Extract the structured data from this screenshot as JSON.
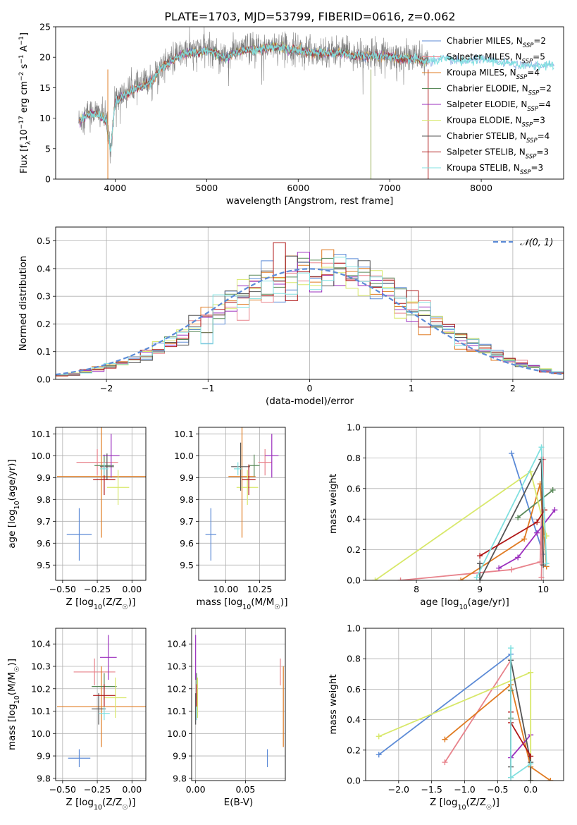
{
  "figure": {
    "title": "PLATE=1703, MJD=53799, FIBERID=0616, z=0.062"
  },
  "series_styles": [
    {
      "name": "Chabrier MILES",
      "label_main": "Chabrier MILES, N",
      "label_sub": "SSP",
      "label_tail": "=2",
      "color": "#5b8ad6"
    },
    {
      "name": "Salpeter MILES",
      "label_main": "Salpeter MILES, N",
      "label_sub": "SSP",
      "label_tail": "=5",
      "color": "#e8838c"
    },
    {
      "name": "Kroupa MILES",
      "label_main": "Kroupa MILES, N",
      "label_sub": "SSP",
      "label_tail": "=4",
      "color": "#e07b22"
    },
    {
      "name": "Chabrier ELODIE",
      "label_main": "Chabrier ELODIE, N",
      "label_sub": "SSP",
      "label_tail": "=2",
      "color": "#5a8a5a"
    },
    {
      "name": "Salpeter ELODIE",
      "label_main": "Salpeter ELODIE, N",
      "label_sub": "SSP",
      "label_tail": "=4",
      "color": "#9b2fbe"
    },
    {
      "name": "Kroupa ELODIE",
      "label_main": "Kroupa ELODIE, N",
      "label_sub": "SSP",
      "label_tail": "=3",
      "color": "#d8e86a"
    },
    {
      "name": "Chabrier STELIB",
      "label_main": "Chabrier STELIB, N",
      "label_sub": "SSP",
      "label_tail": "=4",
      "color": "#555555"
    },
    {
      "name": "Salpeter STELIB",
      "label_main": "Salpeter STELIB, N",
      "label_sub": "SSP",
      "label_tail": "=3",
      "color": "#b01818"
    },
    {
      "name": "Kroupa STELIB",
      "label_main": "Kroupa STELIB, N",
      "label_sub": "SSP",
      "label_tail": "=3",
      "color": "#80e0e0"
    }
  ],
  "chart_data": [
    {
      "id": "spectrum",
      "type": "line",
      "xlabel": "wavelength [Angstrom, rest frame]",
      "ylabel": "Flux [f_λ10^-17 erg cm^-2 s^-1 A^-1]",
      "xlim": [
        3350,
        8900
      ],
      "ylim": [
        0,
        25
      ],
      "xticks": [
        4000,
        5000,
        6000,
        7000,
        8000
      ],
      "yticks": [
        0,
        5,
        10,
        15,
        20,
        25
      ],
      "legend": "right",
      "envelope": [
        [
          3600,
          9.5
        ],
        [
          3700,
          11
        ],
        [
          3800,
          11
        ],
        [
          3900,
          10
        ],
        [
          3950,
          5
        ],
        [
          4000,
          13
        ],
        [
          4100,
          14
        ],
        [
          4200,
          15
        ],
        [
          4300,
          15.5
        ],
        [
          4400,
          16.5
        ],
        [
          4500,
          18.5
        ],
        [
          4600,
          19.5
        ],
        [
          4700,
          20.5
        ],
        [
          4800,
          21
        ],
        [
          4900,
          21
        ],
        [
          5000,
          21.5
        ],
        [
          5100,
          21
        ],
        [
          5200,
          20
        ],
        [
          5300,
          21
        ],
        [
          5400,
          21.5
        ],
        [
          5500,
          21.5
        ],
        [
          5600,
          21.5
        ],
        [
          5700,
          22
        ],
        [
          5800,
          22
        ],
        [
          5900,
          21.5
        ],
        [
          6000,
          21.5
        ],
        [
          6100,
          21
        ],
        [
          6200,
          21
        ],
        [
          6300,
          21
        ],
        [
          6400,
          21
        ],
        [
          6500,
          21
        ],
        [
          6600,
          20.5
        ],
        [
          6700,
          20.5
        ],
        [
          6800,
          20.5
        ],
        [
          6900,
          20.5
        ],
        [
          7000,
          20.5
        ],
        [
          7100,
          20
        ],
        [
          7200,
          20
        ],
        [
          7300,
          20
        ],
        [
          7400,
          19.5
        ],
        [
          7600,
          20
        ],
        [
          7800,
          19.5
        ],
        [
          8000,
          20
        ],
        [
          8200,
          19.5
        ],
        [
          8400,
          19
        ],
        [
          8600,
          19
        ],
        [
          8800,
          19
        ]
      ],
      "noise_until": 7420
    },
    {
      "id": "residuals",
      "type": "step",
      "xlabel": "(data-model)/error",
      "ylabel": "Normed distribution",
      "xlim": [
        -2.5,
        2.5
      ],
      "ylim": [
        0,
        0.55
      ],
      "xticks": [
        -2,
        -1,
        0,
        1,
        2
      ],
      "yticks": [
        0.0,
        0.1,
        0.2,
        0.3,
        0.4,
        0.5
      ],
      "bin_edges": [
        -2.5,
        2.5
      ],
      "bins": 42,
      "reference": {
        "label": "𝒩(0, 1)",
        "mean": 0,
        "sigma": 1
      },
      "legend": "top-right"
    },
    {
      "id": "age_vs_Z",
      "type": "scatter",
      "xlabel": "Z [log10(Z/Z☉)]",
      "ylabel": "age [log10(age/yr)]",
      "xlim": [
        -0.55,
        0.1
      ],
      "ylim": [
        9.43,
        10.13
      ],
      "xticks": [
        -0.5,
        -0.25,
        0.0
      ],
      "yticks": [
        9.5,
        9.6,
        9.7,
        9.8,
        9.9,
        10.0,
        10.1
      ],
      "points": [
        {
          "series": "Chabrier MILES",
          "x": -0.38,
          "y": 9.64,
          "xerr": 0.09,
          "yerr": 0.12
        },
        {
          "series": "Salpeter MILES",
          "x": -0.25,
          "y": 9.97,
          "xerr": 0.15,
          "yerr": 0.06
        },
        {
          "series": "Kroupa MILES",
          "x": -0.22,
          "y": 9.905,
          "xerr": 0.32,
          "yerr": 0.28
        },
        {
          "series": "Chabrier ELODIE",
          "x": -0.2,
          "y": 9.955,
          "xerr": 0.07,
          "yerr": 0.05
        },
        {
          "series": "Salpeter ELODIE",
          "x": -0.15,
          "y": 10.0,
          "xerr": 0.06,
          "yerr": 0.1
        },
        {
          "series": "Kroupa ELODIE",
          "x": -0.1,
          "y": 9.855,
          "xerr": 0.08,
          "yerr": 0.08
        },
        {
          "series": "Chabrier STELIB",
          "x": -0.18,
          "y": 9.95,
          "xerr": 0.05,
          "yerr": 0.06
        },
        {
          "series": "Salpeter STELIB",
          "x": -0.2,
          "y": 9.89,
          "xerr": 0.08,
          "yerr": 0.07
        },
        {
          "series": "Kroupa STELIB",
          "x": -0.2,
          "y": 9.94,
          "xerr": 0.03,
          "yerr": 0.03
        }
      ]
    },
    {
      "id": "age_vs_mass",
      "type": "scatter",
      "xlabel": "mass [log10(M/M☉)]",
      "ylabel": "",
      "xlim": [
        9.8,
        10.44
      ],
      "ylim": [
        9.43,
        10.13
      ],
      "xticks": [
        10.0,
        10.25
      ],
      "yticks": [
        9.5,
        9.6,
        9.7,
        9.8,
        9.9,
        10.0,
        10.1
      ],
      "points": [
        {
          "series": "Chabrier MILES",
          "x": 9.89,
          "y": 9.64,
          "xerr": 0.04,
          "yerr": 0.12
        },
        {
          "series": "Salpeter MILES",
          "x": 10.29,
          "y": 9.97,
          "xerr": 0.05,
          "yerr": 0.06
        },
        {
          "series": "Kroupa MILES",
          "x": 10.12,
          "y": 9.905,
          "xerr": 0.1,
          "yerr": 0.28
        },
        {
          "series": "Chabrier ELODIE",
          "x": 10.21,
          "y": 9.955,
          "xerr": 0.04,
          "yerr": 0.05
        },
        {
          "series": "Salpeter ELODIE",
          "x": 10.34,
          "y": 10.0,
          "xerr": 0.05,
          "yerr": 0.1
        },
        {
          "series": "Kroupa ELODIE",
          "x": 10.16,
          "y": 9.855,
          "xerr": 0.08,
          "yerr": 0.08
        },
        {
          "series": "Chabrier STELIB",
          "x": 10.11,
          "y": 9.95,
          "xerr": 0.07,
          "yerr": 0.11
        },
        {
          "series": "Salpeter STELIB",
          "x": 10.17,
          "y": 9.89,
          "xerr": 0.05,
          "yerr": 0.07
        },
        {
          "series": "Kroupa STELIB",
          "x": 10.09,
          "y": 9.94,
          "xerr": 0.03,
          "yerr": 0.03
        }
      ]
    },
    {
      "id": "weight_vs_age",
      "type": "line",
      "xlabel": "age [log10(age/yr)]",
      "ylabel": "mass weight",
      "xlim": [
        7.2,
        10.32
      ],
      "ylim": [
        0,
        1
      ],
      "xticks": [
        8,
        9,
        10
      ],
      "yticks": [
        0.0,
        0.2,
        0.4,
        0.6,
        0.8,
        1.0
      ],
      "series": [
        {
          "name": "Chabrier MILES",
          "x": [
            9.5,
            10.0
          ],
          "y": [
            0.83,
            0.17
          ]
        },
        {
          "name": "Salpeter MILES",
          "x": [
            7.75,
            9.5,
            9.95,
            10.0,
            9.97
          ],
          "y": [
            0.0,
            0.07,
            0.12,
            0.79,
            0.02
          ]
        },
        {
          "name": "Kroupa MILES",
          "x": [
            8.7,
            9.7,
            9.95,
            10.05
          ],
          "y": [
            0.0,
            0.27,
            0.63,
            0.09
          ]
        },
        {
          "name": "Chabrier ELODIE",
          "x": [
            9.6,
            10.15
          ],
          "y": [
            0.41,
            0.59
          ]
        },
        {
          "name": "Salpeter ELODIE",
          "x": [
            9.3,
            9.6,
            9.9,
            10.18
          ],
          "y": [
            0.08,
            0.15,
            0.31,
            0.46
          ]
        },
        {
          "name": "Kroupa ELODIE",
          "x": [
            7.35,
            9.8,
            10.05
          ],
          "y": [
            0.0,
            0.71,
            0.29
          ]
        },
        {
          "name": "Chabrier STELIB",
          "x": [
            9.0,
            9.0,
            9.97,
            10.0
          ],
          "y": [
            0.11,
            0.0,
            0.79,
            0.1
          ]
        },
        {
          "name": "Salpeter STELIB",
          "x": [
            9.0,
            9.9,
            10.02
          ],
          "y": [
            0.16,
            0.38,
            0.46
          ]
        },
        {
          "name": "Kroupa STELIB",
          "x": [
            8.95,
            9.97,
            10.05
          ],
          "y": [
            0.02,
            0.87,
            0.11
          ]
        }
      ]
    },
    {
      "id": "mass_vs_Z",
      "type": "scatter",
      "xlabel": "Z [log10(Z/Z☉)]",
      "ylabel": "mass [log10(M/M☉)]",
      "xlim": [
        -0.55,
        0.1
      ],
      "ylim": [
        9.79,
        10.47
      ],
      "xticks": [
        -0.5,
        -0.25,
        0.0
      ],
      "yticks": [
        9.8,
        9.9,
        10.0,
        10.1,
        10.2,
        10.3,
        10.4
      ],
      "points": [
        {
          "series": "Chabrier MILES",
          "x": -0.38,
          "y": 9.89,
          "xerr": 0.08,
          "yerr": 0.04
        },
        {
          "series": "Salpeter MILES",
          "x": -0.27,
          "y": 10.275,
          "xerr": 0.15,
          "yerr": 0.06
        },
        {
          "series": "Kroupa MILES",
          "x": -0.22,
          "y": 10.12,
          "xerr": 0.32,
          "yerr": 0.18
        },
        {
          "series": "Chabrier ELODIE",
          "x": -0.2,
          "y": 10.21,
          "xerr": 0.09,
          "yerr": 0.06
        },
        {
          "series": "Salpeter ELODIE",
          "x": -0.17,
          "y": 10.34,
          "xerr": 0.06,
          "yerr": 0.1
        },
        {
          "series": "Kroupa ELODIE",
          "x": -0.12,
          "y": 10.16,
          "xerr": 0.08,
          "yerr": 0.09
        },
        {
          "series": "Chabrier STELIB",
          "x": -0.24,
          "y": 10.11,
          "xerr": 0.05,
          "yerr": 0.07
        },
        {
          "series": "Salpeter STELIB",
          "x": -0.2,
          "y": 10.17,
          "xerr": 0.08,
          "yerr": 0.05
        },
        {
          "series": "Kroupa STELIB",
          "x": -0.2,
          "y": 10.09,
          "xerr": 0.04,
          "yerr": 0.03
        }
      ]
    },
    {
      "id": "mass_vs_EBV",
      "type": "scatter",
      "xlabel": "E(B-V)",
      "ylabel": "",
      "xlim": [
        -0.004,
        0.09
      ],
      "ylim": [
        9.79,
        10.47
      ],
      "xticks": [
        0.0,
        0.05
      ],
      "yticks": [
        9.8,
        9.9,
        10.0,
        10.1,
        10.2,
        10.3,
        10.4
      ],
      "points": [
        {
          "series": "Chabrier MILES",
          "x": 0.072,
          "y": 9.89,
          "xerr": 0.0,
          "yerr": 0.04
        },
        {
          "series": "Salpeter MILES",
          "x": 0.085,
          "y": 10.275,
          "xerr": 0.0,
          "yerr": 0.06
        },
        {
          "series": "Kroupa MILES",
          "x": 0.088,
          "y": 10.12,
          "xerr": 0.0,
          "yerr": 0.18
        },
        {
          "series": "Chabrier ELODIE",
          "x": 0.001,
          "y": 10.21,
          "xerr": 0.0,
          "yerr": 0.06
        },
        {
          "series": "Salpeter ELODIE",
          "x": 0.0,
          "y": 10.34,
          "xerr": 0.0,
          "yerr": 0.1
        },
        {
          "series": "Kroupa ELODIE",
          "x": 0.002,
          "y": 10.16,
          "xerr": 0.0,
          "yerr": 0.09
        },
        {
          "series": "Chabrier STELIB",
          "x": 0.0,
          "y": 10.11,
          "xerr": 0.0,
          "yerr": 0.07
        },
        {
          "series": "Salpeter STELIB",
          "x": 0.001,
          "y": 10.17,
          "xerr": 0.0,
          "yerr": 0.05
        },
        {
          "series": "Kroupa STELIB",
          "x": 0.001,
          "y": 10.09,
          "xerr": 0.0,
          "yerr": 0.03
        }
      ]
    },
    {
      "id": "weight_vs_Z",
      "type": "line",
      "xlabel": "Z [log10(Z/Z☉)]",
      "ylabel": "mass weight",
      "xlim": [
        -2.5,
        0.5
      ],
      "ylim": [
        0,
        1
      ],
      "xticks": [
        -2.0,
        -1.5,
        -1.0,
        -0.5,
        0.0
      ],
      "yticks": [
        0.0,
        0.2,
        0.4,
        0.6,
        0.8,
        1.0
      ],
      "series": [
        {
          "name": "Chabrier MILES",
          "x": [
            -2.3,
            -0.3
          ],
          "y": [
            0.17,
            0.83
          ]
        },
        {
          "name": "Salpeter MILES",
          "x": [
            -1.3,
            -0.3,
            -0.3
          ],
          "y": [
            0.12,
            0.79,
            0.02
          ]
        },
        {
          "name": "Kroupa MILES",
          "x": [
            -1.3,
            -0.3,
            0.0,
            0.3
          ],
          "y": [
            0.27,
            0.63,
            0.09,
            0.0
          ]
        },
        {
          "name": "Chabrier ELODIE",
          "x": [
            -0.3,
            -0.3
          ],
          "y": [
            0.41,
            0.59
          ]
        },
        {
          "name": "Salpeter ELODIE",
          "x": [
            -0.3,
            0.0
          ],
          "y": [
            0.15,
            0.3
          ]
        },
        {
          "name": "Kroupa ELODIE",
          "x": [
            -2.3,
            0.0,
            0.0
          ],
          "y": [
            0.29,
            0.71,
            0.0
          ]
        },
        {
          "name": "Chabrier STELIB",
          "x": [
            -0.3,
            -0.3,
            0.0,
            0.0
          ],
          "y": [
            0.09,
            0.79,
            0.12,
            0.0
          ]
        },
        {
          "name": "Salpeter STELIB",
          "x": [
            -0.3,
            -0.3,
            0.0
          ],
          "y": [
            0.45,
            0.38,
            0.16
          ]
        },
        {
          "name": "Kroupa STELIB",
          "x": [
            -0.3,
            -0.3,
            0.0
          ],
          "y": [
            0.87,
            0.02,
            0.11
          ]
        }
      ]
    }
  ]
}
